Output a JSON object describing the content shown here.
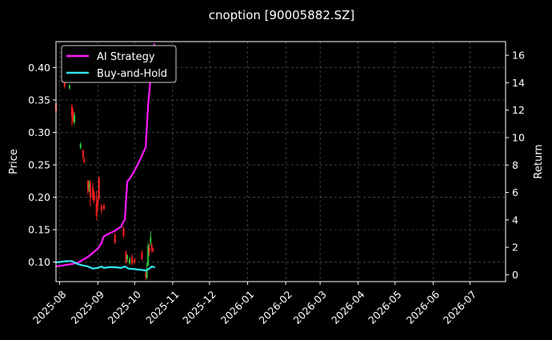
{
  "chart_data": {
    "type": "line",
    "title": "cnoption [90005882.SZ]",
    "ylabel": "Price",
    "y2label": "Return",
    "xlabel": "",
    "grid": true,
    "legend_placement": "top-left",
    "background": "#000000",
    "x_ticks": [
      "2025-08",
      "2025-09",
      "2025-10",
      "2025-11",
      "2025-12",
      "2026-01",
      "2026-02",
      "2026-03",
      "2026-04",
      "2026-05",
      "2026-06",
      "2026-07"
    ],
    "xlim": [
      "2025-07-29",
      "2026-07-30"
    ],
    "ylim": [
      0.07,
      0.44
    ],
    "y_ticks": [
      0.1,
      0.15,
      0.2,
      0.25,
      0.3,
      0.35,
      0.4
    ],
    "y2lim": [
      -0.5,
      17.0
    ],
    "y2_ticks": [
      0,
      2,
      4,
      6,
      8,
      10,
      12,
      14,
      16
    ],
    "series": [
      {
        "name": "AI Strategy",
        "color": "#ff1aff",
        "axis": "right",
        "points": [
          [
            "2025-07-29",
            0.6
          ],
          [
            "2025-08-05",
            0.7
          ],
          [
            "2025-08-12",
            0.8
          ],
          [
            "2025-08-16",
            0.9
          ],
          [
            "2025-08-20",
            1.1
          ],
          [
            "2025-08-24",
            1.3
          ],
          [
            "2025-08-28",
            1.6
          ],
          [
            "2025-09-01",
            1.9
          ],
          [
            "2025-09-04",
            2.3
          ],
          [
            "2025-09-05",
            2.6
          ],
          [
            "2025-09-06",
            2.8
          ],
          [
            "2025-09-10",
            3.0
          ],
          [
            "2025-09-15",
            3.2
          ],
          [
            "2025-09-18",
            3.4
          ],
          [
            "2025-09-20",
            3.5
          ],
          [
            "2025-09-22",
            3.9
          ],
          [
            "2025-09-23",
            4.0
          ],
          [
            "2025-09-25",
            6.8
          ],
          [
            "2025-09-27",
            7.0
          ],
          [
            "2025-10-01",
            7.6
          ],
          [
            "2025-10-06",
            8.5
          ],
          [
            "2025-10-10",
            9.3
          ],
          [
            "2025-10-12",
            12.4
          ],
          [
            "2025-10-15",
            15.3
          ],
          [
            "2025-10-17",
            16.8
          ]
        ]
      },
      {
        "name": "Buy-and-Hold",
        "color": "#33e6f2",
        "axis": "right",
        "points": [
          [
            "2025-07-29",
            0.9
          ],
          [
            "2025-08-03",
            0.95
          ],
          [
            "2025-08-07",
            1.0
          ],
          [
            "2025-08-11",
            1.0
          ],
          [
            "2025-08-15",
            0.8
          ],
          [
            "2025-08-19",
            0.7
          ],
          [
            "2025-08-24",
            0.6
          ],
          [
            "2025-08-28",
            0.45
          ],
          [
            "2025-09-01",
            0.5
          ],
          [
            "2025-09-04",
            0.6
          ],
          [
            "2025-09-06",
            0.5
          ],
          [
            "2025-09-10",
            0.55
          ],
          [
            "2025-09-15",
            0.55
          ],
          [
            "2025-09-20",
            0.5
          ],
          [
            "2025-09-23",
            0.6
          ],
          [
            "2025-09-26",
            0.45
          ],
          [
            "2025-10-02",
            0.4
          ],
          [
            "2025-10-07",
            0.35
          ],
          [
            "2025-10-10",
            0.3
          ],
          [
            "2025-10-13",
            0.45
          ],
          [
            "2025-10-15",
            0.6
          ],
          [
            "2025-10-17",
            0.55
          ]
        ]
      }
    ],
    "candles": {
      "axis": "left",
      "up_color": "#2ecc40",
      "down_color": "#ff2020",
      "items": [
        {
          "date": "2025-07-29",
          "open": 0.345,
          "close": 0.333,
          "high": 0.36,
          "low": 0.328
        },
        {
          "date": "2025-08-05",
          "open": 0.378,
          "close": 0.371,
          "high": 0.38,
          "low": 0.368
        },
        {
          "date": "2025-08-09",
          "open": 0.369,
          "close": 0.372,
          "high": 0.374,
          "low": 0.366
        },
        {
          "date": "2025-08-11",
          "open": 0.34,
          "close": 0.325,
          "high": 0.344,
          "low": 0.31
        },
        {
          "date": "2025-08-12",
          "open": 0.332,
          "close": 0.318,
          "high": 0.336,
          "low": 0.315
        },
        {
          "date": "2025-08-13",
          "open": 0.316,
          "close": 0.326,
          "high": 0.33,
          "low": 0.312
        },
        {
          "date": "2025-08-18",
          "open": 0.276,
          "close": 0.282,
          "high": 0.285,
          "low": 0.274
        },
        {
          "date": "2025-08-20",
          "open": 0.272,
          "close": 0.262,
          "high": 0.274,
          "low": 0.258
        },
        {
          "date": "2025-08-21",
          "open": 0.258,
          "close": 0.254,
          "high": 0.262,
          "low": 0.252
        },
        {
          "date": "2025-08-24",
          "open": 0.226,
          "close": 0.21,
          "high": 0.226,
          "low": 0.204
        },
        {
          "date": "2025-08-25",
          "open": 0.214,
          "close": 0.22,
          "high": 0.226,
          "low": 0.208
        },
        {
          "date": "2025-08-26",
          "open": 0.222,
          "close": 0.2,
          "high": 0.226,
          "low": 0.186
        },
        {
          "date": "2025-08-28",
          "open": 0.215,
          "close": 0.2,
          "high": 0.222,
          "low": 0.195
        },
        {
          "date": "2025-08-29",
          "open": 0.205,
          "close": 0.195,
          "high": 0.21,
          "low": 0.19
        },
        {
          "date": "2025-08-31",
          "open": 0.19,
          "close": 0.172,
          "high": 0.21,
          "low": 0.165
        },
        {
          "date": "2025-09-01",
          "open": 0.196,
          "close": 0.188,
          "high": 0.2,
          "low": 0.18
        },
        {
          "date": "2025-09-02",
          "open": 0.23,
          "close": 0.198,
          "high": 0.232,
          "low": 0.196
        },
        {
          "date": "2025-09-04",
          "open": 0.186,
          "close": 0.18,
          "high": 0.19,
          "low": 0.175
        },
        {
          "date": "2025-09-06",
          "open": 0.188,
          "close": 0.182,
          "high": 0.19,
          "low": 0.18
        },
        {
          "date": "2025-09-15",
          "open": 0.142,
          "close": 0.13,
          "high": 0.145,
          "low": 0.128
        },
        {
          "date": "2025-09-22",
          "open": 0.152,
          "close": 0.14,
          "high": 0.155,
          "low": 0.138
        },
        {
          "date": "2025-09-24",
          "open": 0.115,
          "close": 0.1,
          "high": 0.118,
          "low": 0.098
        },
        {
          "date": "2025-09-25",
          "open": 0.105,
          "close": 0.11,
          "high": 0.112,
          "low": 0.1
        },
        {
          "date": "2025-09-27",
          "open": 0.098,
          "close": 0.105,
          "high": 0.108,
          "low": 0.096
        },
        {
          "date": "2025-09-29",
          "open": 0.108,
          "close": 0.098,
          "high": 0.112,
          "low": 0.095
        },
        {
          "date": "2025-10-01",
          "open": 0.104,
          "close": 0.1,
          "high": 0.106,
          "low": 0.097
        },
        {
          "date": "2025-10-07",
          "open": 0.115,
          "close": 0.105,
          "high": 0.118,
          "low": 0.103
        },
        {
          "date": "2025-10-10",
          "open": 0.082,
          "close": 0.078,
          "high": 0.085,
          "low": 0.072
        },
        {
          "date": "2025-10-11",
          "open": 0.076,
          "close": 0.09,
          "high": 0.1,
          "low": 0.074
        },
        {
          "date": "2025-10-12",
          "open": 0.095,
          "close": 0.125,
          "high": 0.13,
          "low": 0.093
        },
        {
          "date": "2025-10-13",
          "open": 0.122,
          "close": 0.115,
          "high": 0.128,
          "low": 0.11
        },
        {
          "date": "2025-10-14",
          "open": 0.13,
          "close": 0.138,
          "high": 0.148,
          "low": 0.125
        },
        {
          "date": "2025-10-15",
          "open": 0.125,
          "close": 0.12,
          "high": 0.13,
          "low": 0.115
        },
        {
          "date": "2025-10-16",
          "open": 0.12,
          "close": 0.118,
          "high": 0.122,
          "low": 0.115
        }
      ]
    }
  }
}
